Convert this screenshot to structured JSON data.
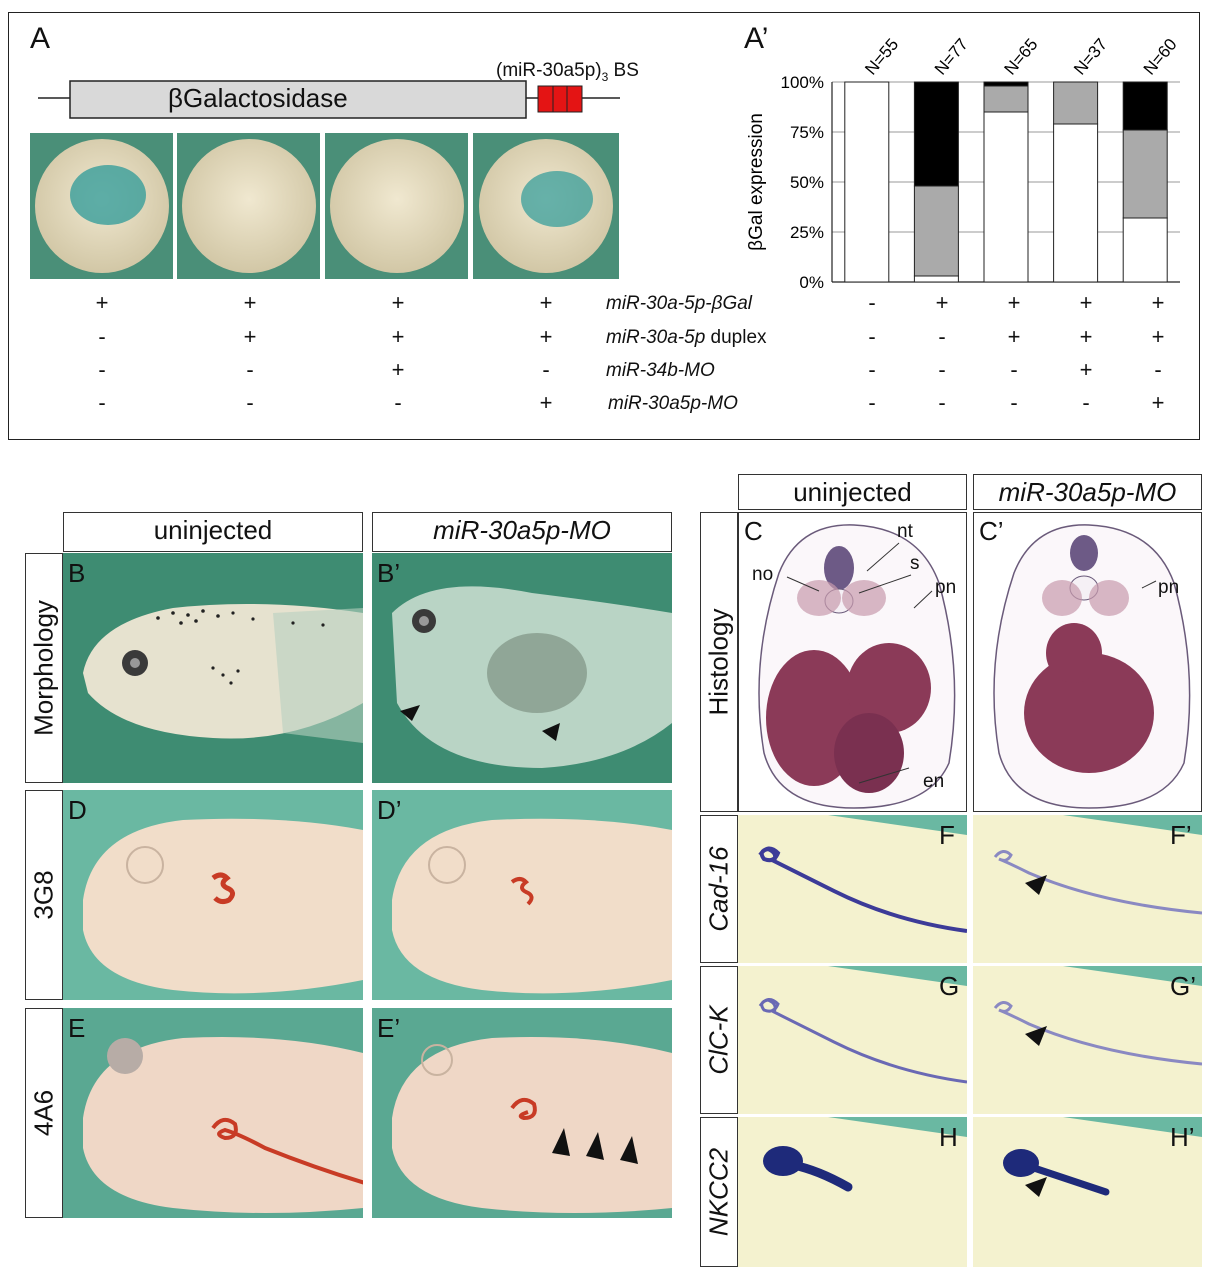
{
  "panel_a": {
    "label": "A",
    "construct_label": "βGalactosidase",
    "binding_site_label": "(miR-30a5p)",
    "binding_site_sub": "3",
    "binding_site_suffix": " BS",
    "rows": [
      {
        "name_italic": "miR-30a-5p-βGal",
        "name_rest": "",
        "left": [
          "+",
          "+",
          "+",
          "+"
        ],
        "right": [
          "-",
          "+",
          "+",
          "+",
          "+"
        ]
      },
      {
        "name_italic": "miR-30a-5p",
        "name_rest": " duplex",
        "left": [
          "-",
          "+",
          "+",
          "+"
        ],
        "right": [
          "-",
          "-",
          "+",
          "+",
          "+"
        ]
      },
      {
        "name_italic": "miR-34b-MO",
        "name_rest": "",
        "left": [
          "-",
          "-",
          "+",
          "-"
        ],
        "right": [
          "-",
          "-",
          "-",
          "+",
          "-"
        ]
      },
      {
        "name_italic": "miR-30a5p-MO",
        "name_rest": "",
        "left": [
          "-",
          "-",
          "-",
          "+"
        ],
        "right": [
          "-",
          "-",
          "-",
          "-",
          "+"
        ]
      }
    ]
  },
  "panel_a_prime": {
    "label": "A’"
  },
  "chart_data": {
    "type": "bar",
    "stacked": true,
    "percent": true,
    "categories": [
      "N=55",
      "N=77",
      "N=65",
      "N=37",
      "N=60"
    ],
    "series": [
      {
        "values": [
          100,
          3,
          85,
          79,
          32
        ],
        "color": "#ffffff"
      },
      {
        "values": [
          0,
          45,
          13,
          21,
          44
        ],
        "color": "#aaaaaa"
      },
      {
        "values": [
          0,
          52,
          2,
          0,
          24
        ],
        "color": "#000000"
      }
    ],
    "ylabel": "βGal expression",
    "yticks": [
      "0%",
      "25%",
      "50%",
      "75%",
      "100%"
    ],
    "ylim": [
      0,
      100
    ],
    "grid": true
  },
  "lower_left": {
    "col_headers": [
      "uninjected",
      "miR-30a5p-MO"
    ],
    "row_labels": [
      "Morphology",
      "3G8",
      "4A6"
    ],
    "panel_labels": [
      "B",
      "B’",
      "D",
      "D’",
      "E",
      "E’"
    ]
  },
  "lower_right": {
    "col_headers": [
      "uninjected",
      "miR-30a5p-MO"
    ],
    "row_labels": [
      "Histology",
      "Cad-16",
      "ClC-K",
      "NKCC2"
    ],
    "panel_labels": [
      "C",
      "C’",
      "F",
      "F’",
      "G",
      "G’",
      "H",
      "H’"
    ],
    "annotations_c": [
      "nt",
      "s",
      "no",
      "pn",
      "en"
    ],
    "annotations_c_prime": [
      "pn"
    ]
  },
  "colors": {
    "binding_site": "#e41414",
    "photo_bg_green": "#3e8c72",
    "beta_gal_stain": "#2a9a9a",
    "ab_stain": "#c83b25",
    "insitu_stain": "#2a2a8a",
    "histology": "#8b3a58"
  }
}
